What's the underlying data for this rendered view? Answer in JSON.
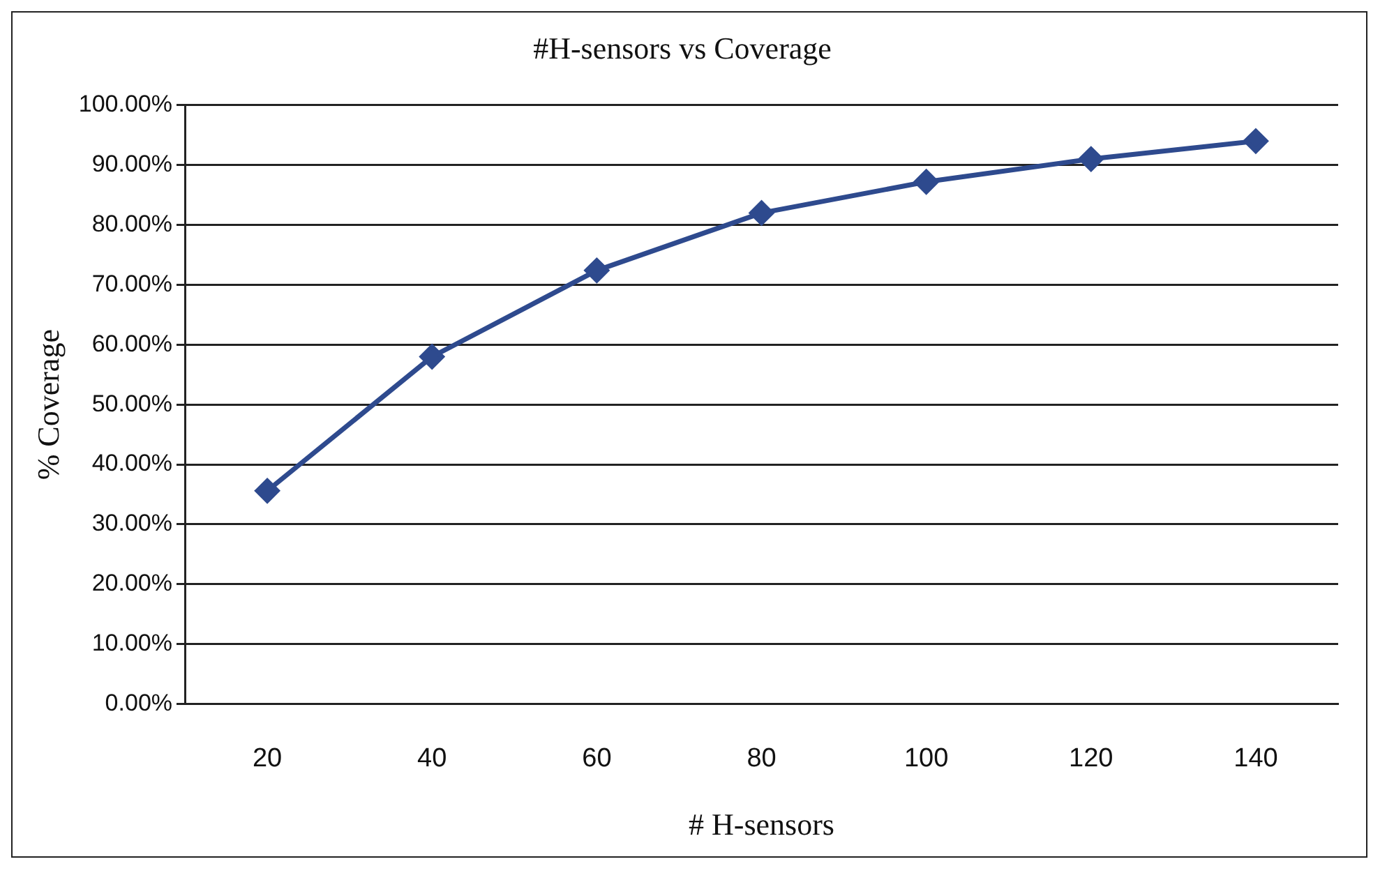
{
  "chart_data": {
    "type": "line",
    "title": "#H-sensors vs Coverage",
    "xlabel": "# H-sensors",
    "ylabel": "% Coverage",
    "categories": [
      "20",
      "40",
      "60",
      "80",
      "100",
      "120",
      "140"
    ],
    "series": [
      {
        "color": "#2e4a8e",
        "values": [
          35.6,
          58,
          72.4,
          82,
          87.2,
          91,
          94
        ]
      }
    ],
    "ylim": [
      0,
      100
    ],
    "yticks": [
      {
        "value": 0,
        "label": "0.00%"
      },
      {
        "value": 10,
        "label": "10.00%"
      },
      {
        "value": 20,
        "label": "20.00%"
      },
      {
        "value": 30,
        "label": "30.00%"
      },
      {
        "value": 40,
        "label": "40.00%"
      },
      {
        "value": 50,
        "label": "50.00%"
      },
      {
        "value": 60,
        "label": "60.00%"
      },
      {
        "value": 70,
        "label": "70.00%"
      },
      {
        "value": 80,
        "label": "80.00%"
      },
      {
        "value": 90,
        "label": "90.00%"
      },
      {
        "value": 100,
        "label": "100.00%"
      }
    ],
    "grid": "y",
    "legend": false,
    "marker": "diamond",
    "line_style": "solid"
  }
}
